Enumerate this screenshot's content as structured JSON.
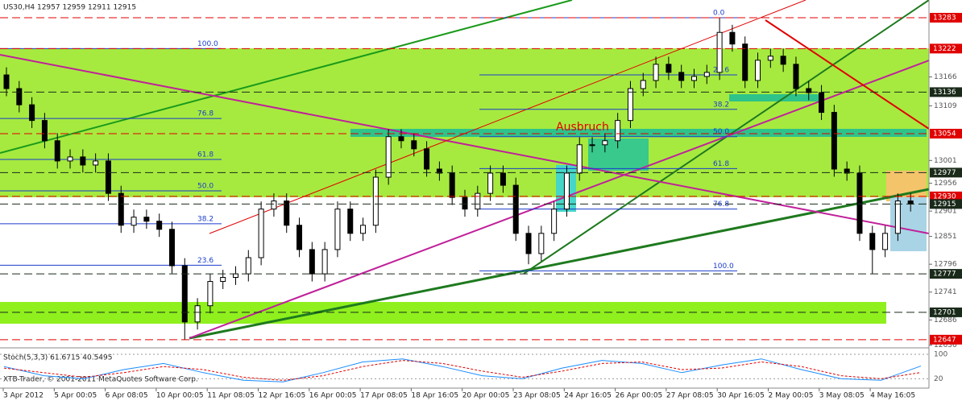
{
  "chart_data": {
    "type": "candlestick",
    "title": "US30,H4  12957 12959 12911 12915",
    "footer": "XTB-Trader, © 2001-2011 MetaQuotes Software Corp.",
    "annotation": "Ausbruch",
    "categories": [
      "3 Apr 2012",
      "5 Apr 00:05",
      "6 Apr 08:05",
      "10 Apr 00:05",
      "11 Apr 08:05",
      "12 Apr 16:05",
      "16 Apr 00:05",
      "17 Apr 08:05",
      "18 Apr 16:05",
      "20 Apr 00:05",
      "23 Apr 08:05",
      "24 Apr 16:05",
      "26 Apr 00:05",
      "27 Apr 08:05",
      "30 Apr 16:05",
      "2 May 00:05",
      "3 May 08:05",
      "4 May 16:05"
    ],
    "open": [
      13170,
      13143,
      13111,
      13080,
      13040,
      13000,
      13008,
      12992,
      13000,
      12936,
      12873,
      12889,
      12881,
      12865,
      12793,
      12682,
      12714,
      12762,
      12770,
      12777,
      12809,
      12905,
      12921,
      12873,
      12825,
      12777,
      12825,
      12905,
      12857,
      12873,
      12968,
      13048,
      13040,
      13024,
      12984,
      12976,
      12928,
      12905,
      12936,
      12976,
      12952,
      12857,
      12817,
      12857,
      12905,
      12976,
      13032,
      13032,
      13040,
      13080,
      13143,
      13159,
      13191,
      13175,
      13159,
      13167,
      13175,
      13254,
      13231,
      13159,
      13199,
      13207,
      13191,
      13143,
      13135,
      13096,
      12984,
      12976,
      12857,
      12825,
      12857,
      12921
    ],
    "high": [
      13185,
      13158,
      13126,
      13095,
      13055,
      13023,
      13023,
      13015,
      13015,
      12951,
      12904,
      12904,
      12896,
      12880,
      12808,
      12729,
      12777,
      12785,
      12792,
      12824,
      12920,
      12936,
      12936,
      12888,
      12840,
      12840,
      12920,
      12920,
      12888,
      12983,
      13063,
      13063,
      13055,
      13039,
      12999,
      12991,
      12943,
      12951,
      12991,
      12991,
      12967,
      12872,
      12872,
      12920,
      12991,
      13047,
      13047,
      13055,
      13095,
      13158,
      13174,
      13206,
      13206,
      13190,
      13182,
      13190,
      13283,
      13269,
      13246,
      13214,
      13222,
      13222,
      13206,
      13158,
      13150,
      13111,
      12999,
      12991,
      12872,
      12872,
      12936,
      12936
    ],
    "low": [
      13128,
      13096,
      13065,
      13025,
      12985,
      12985,
      12977,
      12977,
      12921,
      12858,
      12858,
      12866,
      12850,
      12778,
      12647,
      12667,
      12699,
      12747,
      12755,
      12762,
      12794,
      12890,
      12858,
      12810,
      12762,
      12762,
      12810,
      12842,
      12842,
      12858,
      12953,
      13025,
      13009,
      12969,
      12961,
      12913,
      12890,
      12890,
      12921,
      12937,
      12842,
      12796,
      12802,
      12842,
      12890,
      12961,
      13017,
      13017,
      13025,
      13065,
      13128,
      13144,
      13160,
      13144,
      13144,
      13152,
      13160,
      13216,
      13144,
      13144,
      13184,
      13176,
      13128,
      13120,
      13081,
      12969,
      12961,
      12842,
      12777,
      12810,
      12842,
      12900
    ],
    "close": [
      13143,
      13111,
      13080,
      13040,
      13000,
      13008,
      12992,
      13000,
      12936,
      12873,
      12889,
      12881,
      12865,
      12793,
      12682,
      12714,
      12762,
      12770,
      12777,
      12809,
      12905,
      12921,
      12873,
      12825,
      12777,
      12825,
      12905,
      12857,
      12873,
      12968,
      13048,
      13040,
      13024,
      12984,
      12976,
      12928,
      12905,
      12936,
      12976,
      12952,
      12857,
      12817,
      12857,
      12905,
      12976,
      13032,
      13032,
      13040,
      13080,
      13143,
      13159,
      13191,
      13175,
      13159,
      13167,
      13175,
      13254,
      13231,
      13159,
      13199,
      13207,
      13191,
      13143,
      13135,
      13096,
      12984,
      12976,
      12857,
      12825,
      12857,
      12921,
      12915
    ],
    "ylim": [
      12634,
      13318
    ],
    "yticks": [
      13166,
      13109,
      13001,
      12956,
      12901,
      12851,
      12796,
      12741,
      12686,
      12636
    ],
    "levels": [
      {
        "value": 13283,
        "color": "#e00000"
      },
      {
        "value": 13222,
        "color": "#e00000"
      },
      {
        "value": 13136,
        "color": "#1a2a1a"
      },
      {
        "value": 13054,
        "color": "#e00000"
      },
      {
        "value": 12977,
        "color": "#1a2a1a"
      },
      {
        "value": 12930,
        "color": "#e00000"
      },
      {
        "value": 12915,
        "color": "#1a2a1a"
      },
      {
        "value": 12777,
        "color": "#1a2a1a"
      },
      {
        "value": 12701,
        "color": "#1a2a1a"
      },
      {
        "value": 12647,
        "color": "#e00000"
      }
    ],
    "fib_left": [
      {
        "label": "100.0",
        "price": 13222
      },
      {
        "label": "76.8",
        "price": 13084
      },
      {
        "label": "61.8",
        "price": 13003
      },
      {
        "label": "50.0",
        "price": 12941
      },
      {
        "label": "38.2",
        "price": 12876
      },
      {
        "label": "23.6",
        "price": 12794
      }
    ],
    "fib_right": [
      {
        "label": "0.0",
        "price": 13283
      },
      {
        "label": "23.6",
        "price": 13170
      },
      {
        "label": "38.2",
        "price": 13102
      },
      {
        "label": "50.0",
        "price": 13048
      },
      {
        "label": "61.8",
        "price": 12985
      },
      {
        "label": "76.8",
        "price": 12905
      },
      {
        "label": "100.0",
        "price": 12783
      }
    ],
    "stoch": {
      "title": "Stoch(5,3,3) 61.6715 40.5495",
      "ylim": [
        0,
        100
      ],
      "yticks": [
        20,
        100
      ],
      "main": {
        "color": "#1a8cff",
        "values": [
          60,
          30,
          20,
          50,
          70,
          40,
          15,
          10,
          40,
          75,
          85,
          60,
          30,
          20,
          55,
          80,
          70,
          40,
          65,
          85,
          50,
          20,
          15,
          61.6715
        ]
      },
      "signal": {
        "color": "#e00000",
        "values": [
          55,
          40,
          25,
          40,
          60,
          50,
          25,
          15,
          30,
          60,
          80,
          70,
          45,
          25,
          45,
          70,
          75,
          50,
          55,
          75,
          60,
          30,
          20,
          40.5495
        ]
      }
    }
  }
}
